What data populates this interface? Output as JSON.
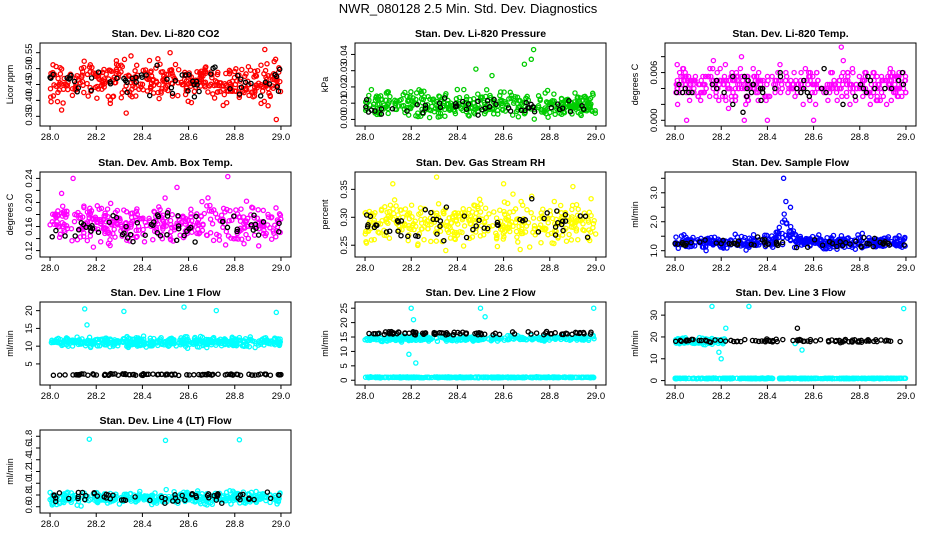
{
  "page_title": "NWR_080128  2.5 Min. Std. Dev. Diagnostics",
  "colors": {
    "red": "#ff0000",
    "green": "#00cc00",
    "magenta": "#ff00ff",
    "yellow": "#ffff00",
    "blue": "#0000ff",
    "cyan": "#00ffff",
    "black": "#000000"
  },
  "chart_data": [
    {
      "id": "co2",
      "type": "scatter",
      "title": "Stan. Dev. Li-820 CO2",
      "ylabel": "Licor ppm",
      "xlim": [
        28.0,
        29.0
      ],
      "ylim": [
        0.33,
        0.57
      ],
      "xticks": [
        "28.0",
        "28.2",
        "28.4",
        "28.6",
        "28.8",
        "29.0"
      ],
      "yticks": [
        0.35,
        0.4,
        0.45,
        0.5,
        0.55
      ],
      "ytick_labels": [
        "0.35",
        "0.40",
        "0.45",
        "0.50",
        "0.55"
      ],
      "series": [
        {
          "name": "primary",
          "color": "red",
          "mean": 0.46,
          "spread": 0.04,
          "n": 380,
          "outliers": [
            [
              28.05,
              0.37
            ],
            [
              28.33,
              0.36
            ],
            [
              28.52,
              0.55
            ],
            [
              28.98,
              0.34
            ],
            [
              28.93,
              0.56
            ]
          ]
        },
        {
          "name": "reference",
          "color": "black",
          "mean": 0.46,
          "spread": 0.03,
          "n": 60
        }
      ]
    },
    {
      "id": "pressure",
      "type": "scatter",
      "title": "Stan. Dev. Li-820 Pressure",
      "ylabel": "kPa",
      "xlim": [
        28.0,
        29.0
      ],
      "ylim": [
        -0.002,
        0.045
      ],
      "xticks": [
        "28.0",
        "28.2",
        "28.4",
        "28.6",
        "28.8",
        "29.0"
      ],
      "yticks": [
        0.0,
        0.01,
        0.02,
        0.03,
        0.04
      ],
      "ytick_labels": [
        "0.00",
        "0.01",
        "0.02",
        "0.03",
        "0.04"
      ],
      "series": [
        {
          "name": "primary",
          "color": "green",
          "mean": 0.009,
          "spread": 0.005,
          "n": 380,
          "outliers": [
            [
              28.73,
              0.043
            ],
            [
              28.72,
              0.037
            ],
            [
              28.48,
              0.031
            ],
            [
              28.55,
              0.027
            ],
            [
              28.69,
              0.034
            ]
          ]
        },
        {
          "name": "reference",
          "color": "black",
          "mean": 0.008,
          "spread": 0.003,
          "n": 50
        }
      ]
    },
    {
      "id": "temp",
      "type": "scatter",
      "title": "Stan. Dev. Li-820 Temp.",
      "ylabel": "degrees C",
      "xlim": [
        28.0,
        29.0
      ],
      "ylim": [
        -0.0003,
        0.0093
      ],
      "xticks": [
        "28.0",
        "28.2",
        "28.4",
        "28.6",
        "28.8",
        "29.0"
      ],
      "yticks": [
        0.0,
        0.002,
        0.004,
        0.006,
        0.008
      ],
      "ytick_labels": [
        "0.000",
        "",
        "",
        "0.006",
        ""
      ],
      "series": [
        {
          "name": "primary",
          "color": "magenta",
          "mean": 0.0045,
          "spread": 0.0015,
          "n": 380,
          "quantum": 0.0005,
          "outliers": [
            [
              28.72,
              0.0092
            ],
            [
              28.05,
              0.0
            ],
            [
              28.3,
              0.0
            ],
            [
              28.4,
              0.0
            ],
            [
              28.6,
              0.0
            ]
          ]
        },
        {
          "name": "reference",
          "color": "black",
          "mean": 0.004,
          "spread": 0.0015,
          "n": 50,
          "quantum": 0.0005
        }
      ]
    },
    {
      "id": "ambbox",
      "type": "scatter",
      "title": "Stan. Dev. Amb. Box Temp.",
      "ylabel": "degrees C",
      "xlim": [
        28.0,
        29.0
      ],
      "ylim": [
        0.115,
        0.245
      ],
      "xticks": [
        "28.0",
        "28.2",
        "28.4",
        "28.6",
        "28.8",
        "29.0"
      ],
      "yticks": [
        0.12,
        0.14,
        0.16,
        0.18,
        0.2,
        0.22,
        0.24
      ],
      "ytick_labels": [
        "0.12",
        "",
        "0.16",
        "",
        "0.20",
        "",
        "0.24"
      ],
      "series": [
        {
          "name": "primary",
          "color": "magenta",
          "mean": 0.165,
          "spread": 0.02,
          "n": 380,
          "outliers": [
            [
              28.1,
              0.24
            ],
            [
              28.77,
              0.243
            ],
            [
              28.55,
              0.225
            ],
            [
              28.05,
              0.215
            ]
          ]
        },
        {
          "name": "reference",
          "color": "black",
          "mean": 0.16,
          "spread": 0.015,
          "n": 60
        }
      ]
    },
    {
      "id": "rh",
      "type": "scatter",
      "title": "Stan. Dev. Gas Stream RH",
      "ylabel": "percent",
      "xlim": [
        28.0,
        29.0
      ],
      "ylim": [
        0.235,
        0.375
      ],
      "xticks": [
        "28.0",
        "28.2",
        "28.4",
        "28.6",
        "28.8",
        "29.0"
      ],
      "yticks": [
        0.25,
        0.3,
        0.35
      ],
      "ytick_labels": [
        "0.25",
        "0.30",
        "0.35"
      ],
      "series": [
        {
          "name": "primary",
          "color": "yellow",
          "mean": 0.29,
          "spread": 0.025,
          "n": 380,
          "outliers": [
            [
              28.31,
              0.372
            ],
            [
              28.12,
              0.36
            ],
            [
              28.6,
              0.36
            ],
            [
              28.9,
              0.355
            ]
          ]
        },
        {
          "name": "reference",
          "color": "black",
          "mean": 0.29,
          "spread": 0.02,
          "n": 55
        }
      ]
    },
    {
      "id": "sampleflow",
      "type": "scatter",
      "title": "Stan. Dev. Sample Flow",
      "ylabel": "ml/min",
      "xlim": [
        28.0,
        29.0
      ],
      "ylim": [
        0.9,
        3.6
      ],
      "xticks": [
        "28.0",
        "28.2",
        "28.4",
        "28.6",
        "28.8",
        "29.0"
      ],
      "yticks": [
        1.0,
        1.5,
        2.0,
        2.5,
        3.0,
        3.5
      ],
      "ytick_labels": [
        "1.0",
        "",
        "2.0",
        "",
        "3.0",
        ""
      ],
      "series": [
        {
          "name": "primary",
          "color": "blue",
          "mean": 1.3,
          "spread": 0.15,
          "n": 400,
          "spike": {
            "x": 28.48,
            "width": 0.05,
            "height": 1.0
          },
          "outliers": [
            [
              28.47,
              3.5
            ],
            [
              28.48,
              2.7
            ],
            [
              28.5,
              2.5
            ]
          ]
        },
        {
          "name": "reference",
          "color": "black",
          "mean": 1.25,
          "spread": 0.1,
          "n": 60
        }
      ]
    },
    {
      "id": "line1",
      "type": "scatter",
      "title": "Stan. Dev. Line 1 Flow",
      "ylabel": "ml/min",
      "xlim": [
        28.0,
        29.0
      ],
      "ylim": [
        0.0,
        21.5
      ],
      "xticks": [
        "28.0",
        "28.2",
        "28.4",
        "28.6",
        "28.8",
        "29.0"
      ],
      "yticks": [
        5,
        10,
        15,
        20
      ],
      "ytick_labels": [
        "5",
        "10",
        "15",
        "20"
      ],
      "series": [
        {
          "name": "primary",
          "color": "cyan",
          "mean": 11.2,
          "spread": 0.9,
          "n": 420,
          "outliers": [
            [
              28.15,
              20.5
            ],
            [
              28.32,
              19.8
            ],
            [
              28.58,
              21
            ],
            [
              28.72,
              20
            ],
            [
              28.98,
              19.5
            ],
            [
              28.16,
              16
            ]
          ]
        },
        {
          "name": "reference",
          "color": "black",
          "mean": 2.0,
          "spread": 0.15,
          "n": 90
        }
      ]
    },
    {
      "id": "line2",
      "type": "scatter",
      "title": "Stan. Dev. Line 2 Flow",
      "ylabel": "ml/min",
      "xlim": [
        28.0,
        29.0
      ],
      "ylim": [
        -0.5,
        26.0
      ],
      "xticks": [
        "28.0",
        "28.2",
        "28.4",
        "28.6",
        "28.8",
        "29.0"
      ],
      "yticks": [
        0,
        5,
        10,
        15,
        20,
        25
      ],
      "ytick_labels": [
        "0",
        "5",
        "10",
        "15",
        "20",
        "25"
      ],
      "series": [
        {
          "name": "primary",
          "color": "cyan",
          "mean": 14.5,
          "spread": 0.6,
          "n": 300,
          "outliers": [
            [
              28.2,
              25
            ],
            [
              28.21,
              21
            ],
            [
              28.22,
              6
            ],
            [
              28.19,
              9
            ],
            [
              28.5,
              25
            ],
            [
              28.52,
              22
            ],
            [
              28.99,
              25
            ]
          ]
        },
        {
          "name": "baseline",
          "color": "cyan",
          "mean": 1.0,
          "spread": 0.1,
          "n": 300
        },
        {
          "name": "reference",
          "color": "black",
          "mean": 16.3,
          "spread": 0.4,
          "n": 90
        }
      ]
    },
    {
      "id": "line3",
      "type": "scatter",
      "title": "Stan. Dev. Line 3 Flow",
      "ylabel": "ml/min",
      "xlim": [
        28.0,
        29.0
      ],
      "ylim": [
        -0.5,
        34.5
      ],
      "xticks": [
        "28.0",
        "28.2",
        "28.4",
        "28.6",
        "28.8",
        "29.0"
      ],
      "yticks": [
        0,
        10,
        20,
        30
      ],
      "ytick_labels": [
        "0",
        "10",
        "20",
        "30"
      ],
      "series": [
        {
          "name": "primary",
          "color": "cyan",
          "mean": 18.0,
          "spread": 1.0,
          "n": 120,
          "range": [
            28.0,
            28.22
          ],
          "outliers": [
            [
              28.19,
              13
            ],
            [
              28.2,
              10
            ],
            [
              28.22,
              24
            ],
            [
              28.99,
              33
            ],
            [
              28.55,
              14
            ],
            [
              28.52,
              17
            ],
            [
              28.32,
              34
            ],
            [
              28.16,
              34
            ]
          ]
        },
        {
          "name": "baseline",
          "color": "cyan",
          "mean": 1.0,
          "spread": 0.1,
          "n": 320
        },
        {
          "name": "reference",
          "color": "black",
          "mean": 18.3,
          "spread": 0.5,
          "n": 90,
          "outliers": [
            [
              28.53,
              24
            ]
          ]
        }
      ]
    },
    {
      "id": "line4",
      "type": "scatter",
      "title": "Stan. Dev. Line 4 (LT) Flow",
      "ylabel": "ml/min",
      "xlim": [
        28.0,
        29.0
      ],
      "ylim": [
        0.55,
        1.85
      ],
      "xticks": [
        "28.0",
        "28.2",
        "28.4",
        "28.6",
        "28.8",
        "29.0"
      ],
      "yticks": [
        0.6,
        0.8,
        1.0,
        1.2,
        1.4,
        1.6,
        1.8
      ],
      "ytick_labels": [
        "0.6",
        "0.8",
        "1.0",
        "1.2",
        "1.4",
        "1.6",
        "1.8"
      ],
      "series": [
        {
          "name": "primary",
          "color": "cyan",
          "mean": 0.75,
          "spread": 0.07,
          "n": 380,
          "outliers": [
            [
              28.17,
              1.75
            ],
            [
              28.5,
              1.73
            ],
            [
              28.82,
              1.74
            ]
          ]
        },
        {
          "name": "reference",
          "color": "black",
          "mean": 0.76,
          "spread": 0.06,
          "n": 60
        }
      ]
    }
  ]
}
